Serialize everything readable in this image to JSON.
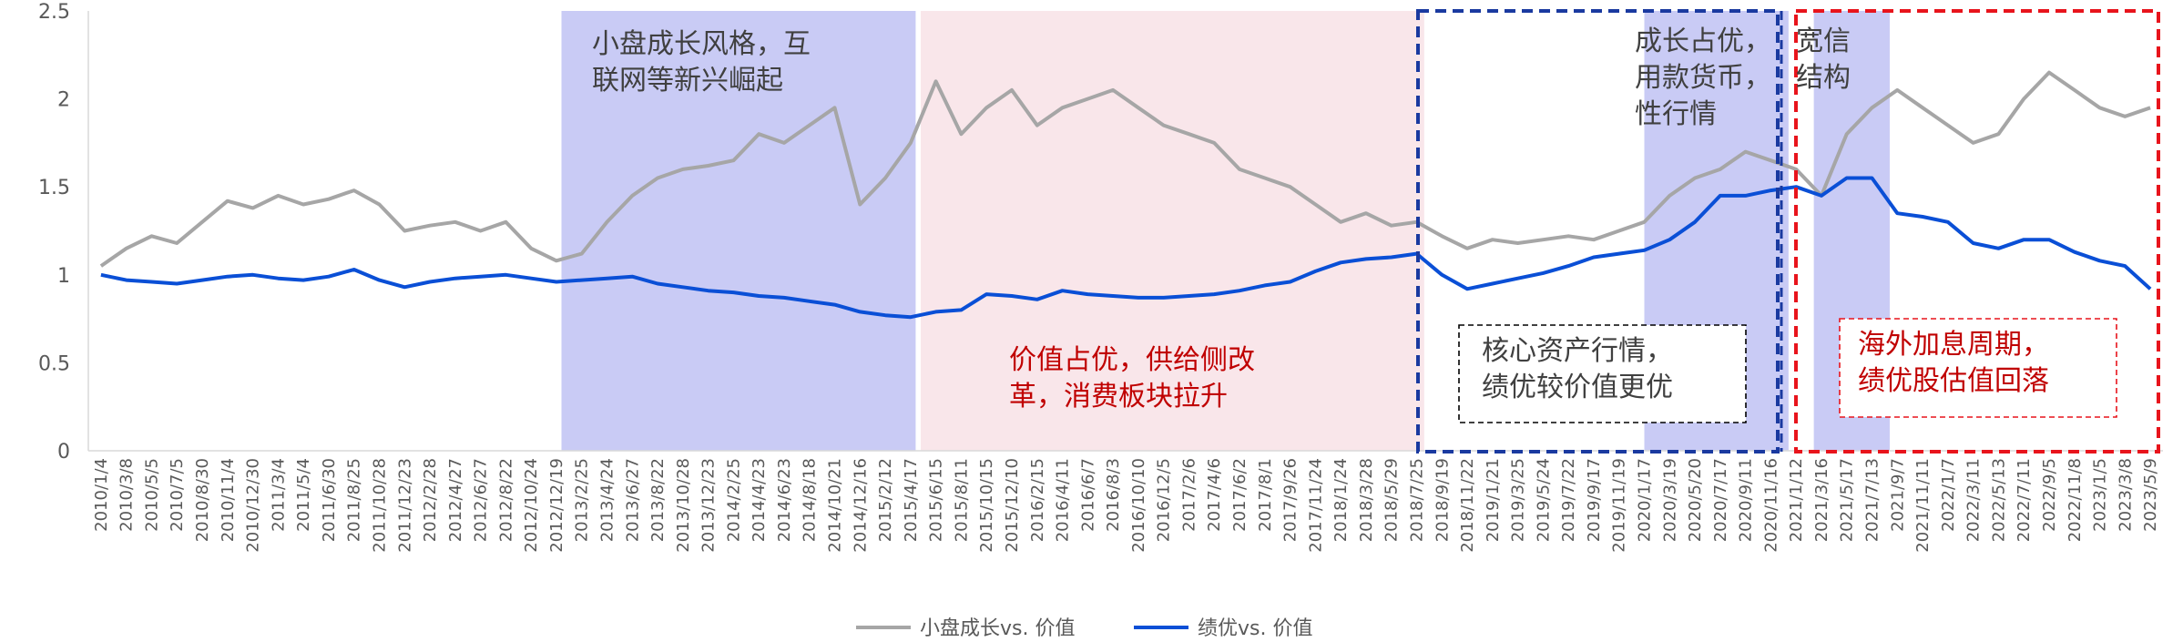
{
  "chart_data": {
    "type": "line",
    "ylim": [
      0,
      2.5
    ],
    "yticks": [
      "0",
      "0.5",
      "1",
      "1.5",
      "2",
      "2.5"
    ],
    "x_tick_labels": [
      "2010/1/4",
      "2010/3/8",
      "2010/5/5",
      "2010/7/5",
      "2010/8/30",
      "2010/11/4",
      "2010/12/30",
      "2011/3/4",
      "2011/5/4",
      "2011/6/30",
      "2011/8/25",
      "2011/10/28",
      "2011/12/23",
      "2012/2/28",
      "2012/4/27",
      "2012/6/27",
      "2012/8/22",
      "2012/10/24",
      "2012/12/19",
      "2013/2/25",
      "2013/4/24",
      "2013/6/27",
      "2013/8/22",
      "2013/10/28",
      "2013/12/23",
      "2014/2/25",
      "2014/4/23",
      "2014/6/23",
      "2014/8/18",
      "2014/10/21",
      "2014/12/16",
      "2015/2/12",
      "2015/4/17",
      "2015/6/15",
      "2015/8/11",
      "2015/10/15",
      "2015/12/10",
      "2016/2/15",
      "2016/4/11",
      "2016/6/7",
      "2016/8/3",
      "2016/10/10",
      "2016/12/5",
      "2017/2/6",
      "2017/4/6",
      "2017/6/2",
      "2017/8/1",
      "2017/9/26",
      "2017/11/24",
      "2018/1/24",
      "2018/3/28",
      "2018/5/29",
      "2018/7/25",
      "2018/9/19",
      "2018/11/22",
      "2019/1/21",
      "2019/3/25",
      "2019/5/24",
      "2019/7/22",
      "2019/9/17",
      "2019/11/19",
      "2020/1/17",
      "2020/3/19",
      "2020/5/20",
      "2020/7/17",
      "2020/9/11",
      "2020/11/16",
      "2021/1/12",
      "2021/3/16",
      "2021/5/17",
      "2021/7/13",
      "2021/9/7",
      "2021/11/11",
      "2022/1/7",
      "2022/3/11",
      "2022/5/13",
      "2022/7/11",
      "2022/9/5",
      "2022/11/8",
      "2023/1/5",
      "2023/3/8",
      "2023/5/9"
    ],
    "series": [
      {
        "name": "小盘成长vs. 价值",
        "color": "#a6a6a6",
        "values": [
          1.05,
          1.15,
          1.22,
          1.18,
          1.3,
          1.42,
          1.38,
          1.45,
          1.4,
          1.43,
          1.48,
          1.4,
          1.25,
          1.28,
          1.3,
          1.25,
          1.3,
          1.15,
          1.08,
          1.12,
          1.3,
          1.45,
          1.55,
          1.6,
          1.62,
          1.65,
          1.8,
          1.75,
          1.85,
          1.95,
          1.4,
          1.55,
          1.75,
          2.1,
          1.8,
          1.95,
          2.05,
          1.85,
          1.95,
          2.0,
          2.05,
          1.95,
          1.85,
          1.8,
          1.75,
          1.6,
          1.55,
          1.5,
          1.4,
          1.3,
          1.35,
          1.28,
          1.3,
          1.22,
          1.15,
          1.2,
          1.18,
          1.2,
          1.22,
          1.2,
          1.25,
          1.3,
          1.45,
          1.55,
          1.6,
          1.7,
          1.65,
          1.6,
          1.45,
          1.8,
          1.95,
          2.05,
          1.95,
          1.85,
          1.75,
          1.8,
          2.0,
          2.15,
          2.05,
          1.95,
          1.9,
          1.95
        ]
      },
      {
        "name": "绩优vs. 价值",
        "color": "#0a4fd6",
        "values": [
          1.0,
          0.97,
          0.96,
          0.95,
          0.97,
          0.99,
          1.0,
          0.98,
          0.97,
          0.99,
          1.03,
          0.97,
          0.93,
          0.96,
          0.98,
          0.99,
          1.0,
          0.98,
          0.96,
          0.97,
          0.98,
          0.99,
          0.95,
          0.93,
          0.91,
          0.9,
          0.88,
          0.87,
          0.85,
          0.83,
          0.79,
          0.77,
          0.76,
          0.79,
          0.8,
          0.89,
          0.88,
          0.86,
          0.91,
          0.89,
          0.88,
          0.87,
          0.87,
          0.88,
          0.89,
          0.91,
          0.94,
          0.96,
          1.02,
          1.07,
          1.09,
          1.1,
          1.12,
          1.0,
          0.92,
          0.95,
          0.98,
          1.01,
          1.05,
          1.1,
          1.12,
          1.14,
          1.2,
          1.3,
          1.45,
          1.45,
          1.48,
          1.5,
          1.45,
          1.55,
          1.55,
          1.35,
          1.33,
          1.3,
          1.18,
          1.15,
          1.2,
          1.2,
          1.13,
          1.08,
          1.05,
          0.92
        ]
      }
    ],
    "annotations": [
      "小盘成长风格，互\n联网等新兴崛起",
      "价值占优，供给侧改\n革，消费板块拉升",
      "核心资产行情，\n绩优较价值更优",
      "成长占优，\n用款货币，\n性行情",
      "宽信\n结构",
      "海外加息周期，\n绩优股估值回落"
    ],
    "grid": false,
    "legend_position": "bottom-center"
  }
}
